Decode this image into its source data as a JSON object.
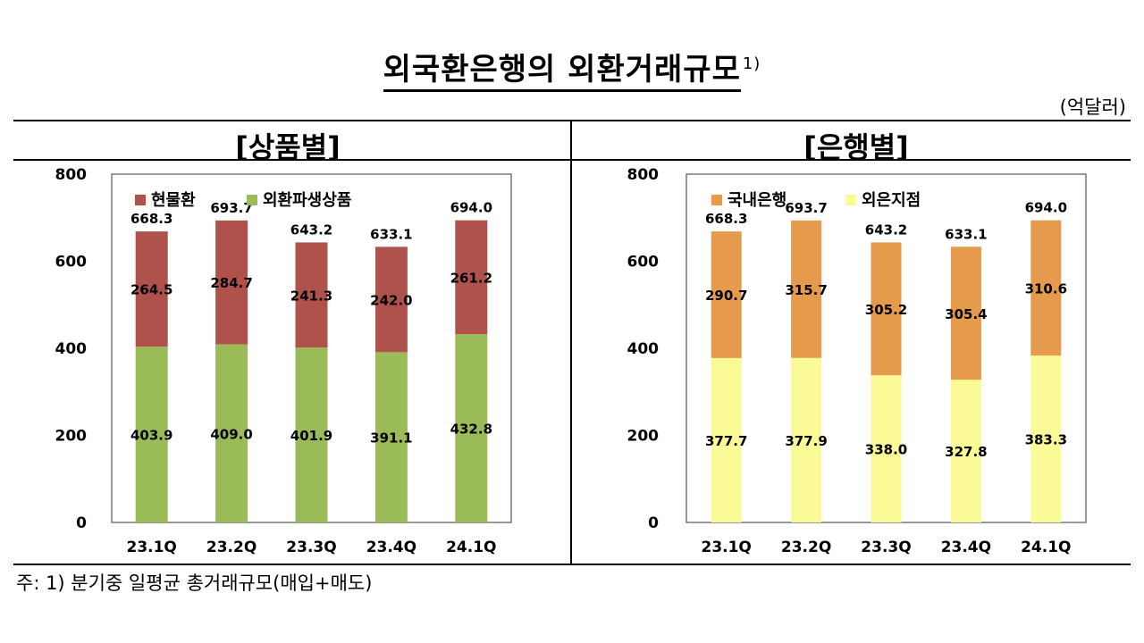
{
  "title": "외국환은행의 외환거래규모",
  "title_footnote_mark": "1)",
  "unit": "(억달러)",
  "footnote": "주: 1) 분기중 일평균 총거래규모(매입+매도)",
  "colors": {
    "spot": "#B0524C",
    "derivative": "#9BBB59",
    "domestic": "#E69A4C",
    "foreign_branch": "#FAFA96"
  },
  "chart_data": [
    {
      "type": "bar",
      "stacked": true,
      "section_title": "[상품별]",
      "categories": [
        "23.1Q",
        "23.2Q",
        "23.3Q",
        "23.4Q",
        "24.1Q"
      ],
      "series": [
        {
          "name": "현물환",
          "values": [
            264.5,
            284.7,
            241.3,
            242.0,
            261.2
          ],
          "color": "#B0524C"
        },
        {
          "name": "외환파생상품",
          "values": [
            403.9,
            409.0,
            401.9,
            391.1,
            432.8
          ],
          "color": "#9BBB59"
        }
      ],
      "totals": [
        668.3,
        693.7,
        643.2,
        633.1,
        694.0
      ],
      "ylim": [
        0,
        800
      ],
      "yticks": [
        0,
        200,
        400,
        600,
        800
      ],
      "legend": "top-left",
      "grid": false
    },
    {
      "type": "bar",
      "stacked": true,
      "section_title": "[은행별]",
      "categories": [
        "23.1Q",
        "23.2Q",
        "23.3Q",
        "23.4Q",
        "24.1Q"
      ],
      "series": [
        {
          "name": "국내은행",
          "values": [
            290.7,
            315.7,
            305.2,
            305.4,
            310.6
          ],
          "color": "#E69A4C"
        },
        {
          "name": "외은지점",
          "values": [
            377.7,
            377.9,
            338.0,
            327.8,
            383.3
          ],
          "color": "#FAFA96"
        }
      ],
      "totals": [
        668.3,
        693.7,
        643.2,
        633.1,
        694.0
      ],
      "ylim": [
        0,
        800
      ],
      "yticks": [
        0,
        200,
        400,
        600,
        800
      ],
      "legend": "top-left",
      "grid": false
    }
  ]
}
